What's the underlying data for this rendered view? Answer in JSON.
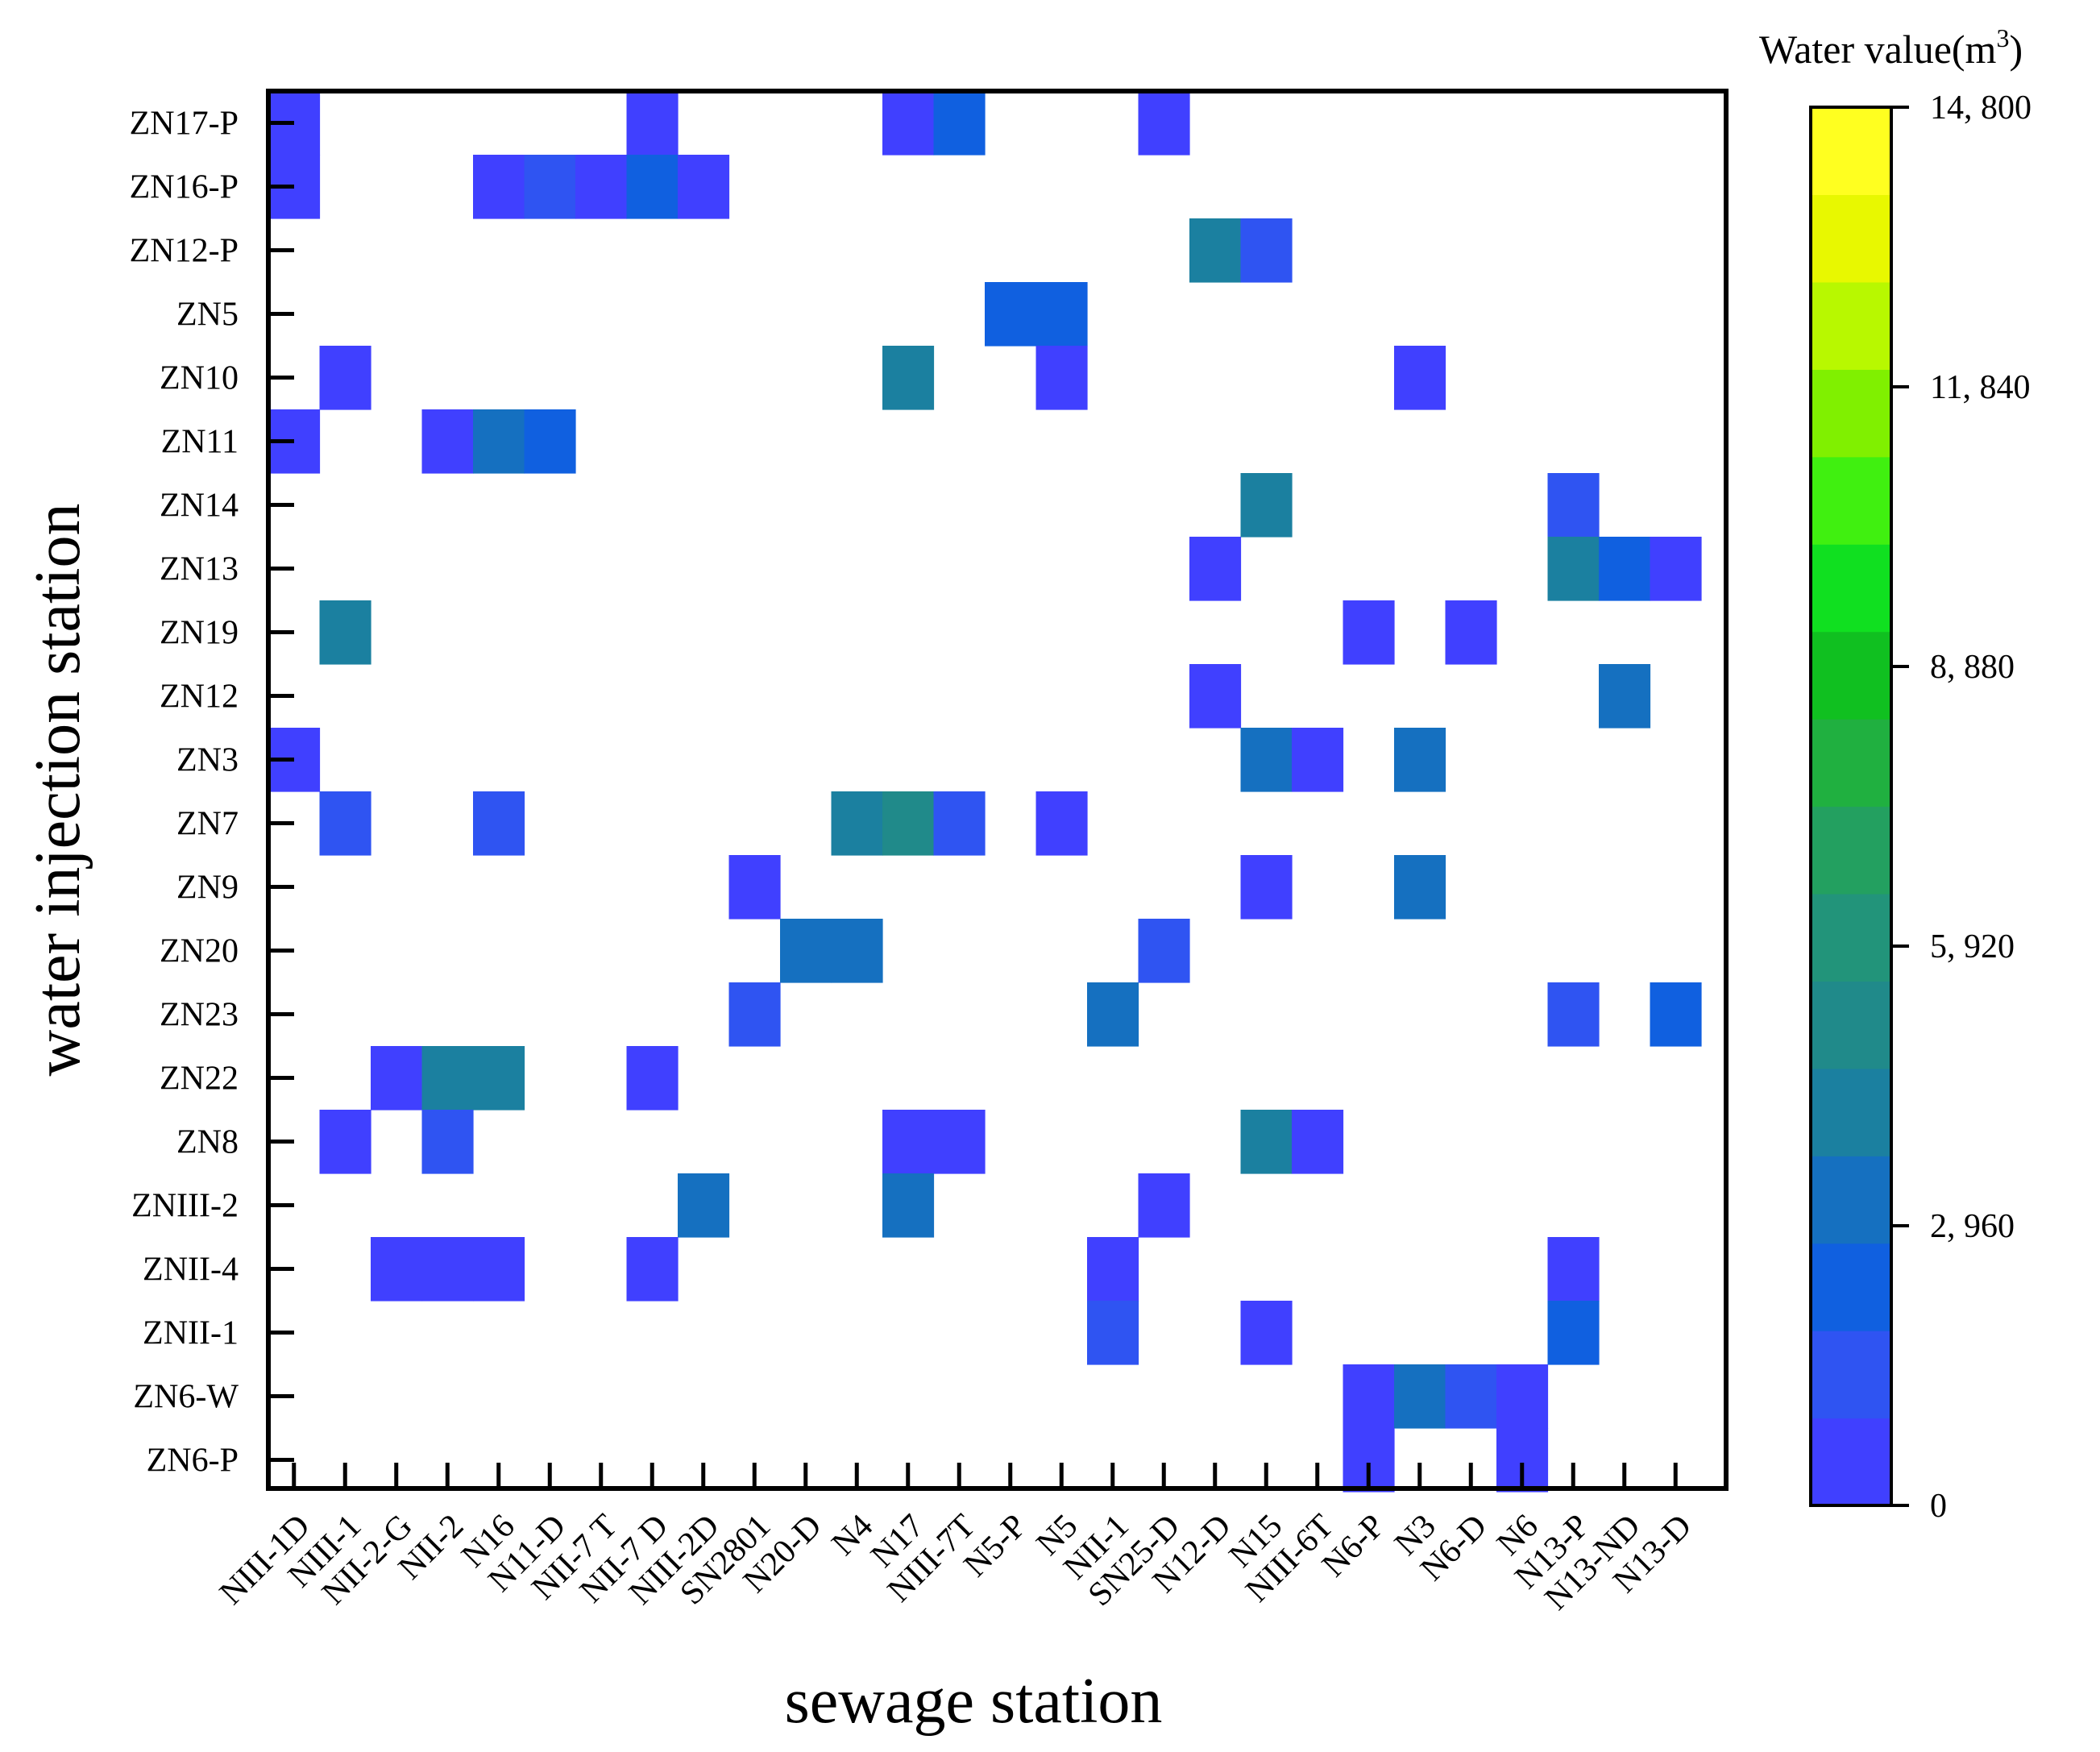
{
  "chart_data": {
    "type": "heatmap",
    "title": "",
    "xlabel": "sewage station",
    "ylabel": "water injection station",
    "x_categories": [
      "NIII-1D",
      "NIII-1",
      "NII-2-G",
      "NII-2",
      "N16",
      "N11-D",
      "NII-7 T",
      "NII-7 D",
      "NIII-2D",
      "SN2801",
      "N20-D",
      "N4",
      "N17",
      "NIII-7T",
      "N5-P",
      "N5",
      "NII-1",
      "SN25-D",
      "N12-D",
      "N15",
      "NIII-6T",
      "N6-P",
      "N3",
      "N6-D",
      "N6",
      "N13-P",
      "N13-ND",
      "N13-D"
    ],
    "y_categories": [
      "ZN17-P",
      "ZN16-P",
      "ZN12-P",
      "ZN5",
      "ZN10",
      "ZN11",
      "ZN14",
      "ZN13",
      "ZN19",
      "ZN12",
      "ZN3",
      "ZN7",
      "ZN9",
      "ZN20",
      "ZN23",
      "ZN22",
      "ZN8",
      "ZNIII-2",
      "ZNII-4",
      "ZNII-1",
      "ZN6-W",
      "ZN6-P"
    ],
    "colorbar": {
      "title": "Water value(m",
      "title_sup": "3",
      "title_end": ")",
      "min": 0,
      "max": 14800,
      "tick_values": [
        0,
        2960,
        5920,
        8880,
        11840,
        14800
      ],
      "tick_labels": [
        "0",
        "2, 960",
        "5, 920",
        "8, 880",
        "11, 840",
        "14, 800"
      ],
      "colors": [
        "#4040ff",
        "#2f54f2",
        "#1060e0",
        "#1570c0",
        "#1b80a0",
        "#208a8a",
        "#22947a",
        "#23a060",
        "#20b040",
        "#10c020",
        "#10e020",
        "#40f010",
        "#80f000",
        "#b8f800",
        "#e8f800",
        "#ffff20"
      ]
    },
    "cells": [
      {
        "x": "NIII-1D",
        "y": "ZN17-P",
        "value": 300
      },
      {
        "x": "NII-7 D",
        "y": "ZN17-P",
        "value": 300
      },
      {
        "x": "N17",
        "y": "ZN17-P",
        "value": 300
      },
      {
        "x": "NIII-7T",
        "y": "ZN17-P",
        "value": 2300
      },
      {
        "x": "SN25-D",
        "y": "ZN17-P",
        "value": 300
      },
      {
        "x": "NIII-1D",
        "y": "ZN16-P",
        "value": 300
      },
      {
        "x": "N16",
        "y": "ZN16-P",
        "value": 300
      },
      {
        "x": "N11-D",
        "y": "ZN16-P",
        "value": 1600
      },
      {
        "x": "NII-7 T",
        "y": "ZN16-P",
        "value": 300
      },
      {
        "x": "NII-7 D",
        "y": "ZN16-P",
        "value": 2500
      },
      {
        "x": "NIII-2D",
        "y": "ZN16-P",
        "value": 900
      },
      {
        "x": "N12-D",
        "y": "ZN12-P",
        "value": 3800
      },
      {
        "x": "N15",
        "y": "ZN12-P",
        "value": 1700
      },
      {
        "x": "N5-P",
        "y": "ZN5",
        "value": 2100
      },
      {
        "x": "N5",
        "y": "ZN5",
        "value": 2100
      },
      {
        "x": "NIII-1",
        "y": "ZN10",
        "value": 300
      },
      {
        "x": "N17",
        "y": "ZN10",
        "value": 4400
      },
      {
        "x": "N5",
        "y": "ZN10",
        "value": 300
      },
      {
        "x": "N3",
        "y": "ZN10",
        "value": 300
      },
      {
        "x": "NIII-1D",
        "y": "ZN11",
        "value": 300
      },
      {
        "x": "NII-2",
        "y": "ZN11",
        "value": 300
      },
      {
        "x": "N16",
        "y": "ZN11",
        "value": 3500
      },
      {
        "x": "N11-D",
        "y": "ZN11",
        "value": 2100
      },
      {
        "x": "N15",
        "y": "ZN14",
        "value": 3800
      },
      {
        "x": "N13-P",
        "y": "ZN14",
        "value": 1500
      },
      {
        "x": "N12-D",
        "y": "ZN13",
        "value": 300
      },
      {
        "x": "N13-P",
        "y": "ZN13",
        "value": 4500
      },
      {
        "x": "N13-ND",
        "y": "ZN13",
        "value": 2100
      },
      {
        "x": "N13-D",
        "y": "ZN13",
        "value": 300
      },
      {
        "x": "NIII-1",
        "y": "ZN19",
        "value": 3800
      },
      {
        "x": "N6-P",
        "y": "ZN19",
        "value": 300
      },
      {
        "x": "N6-D",
        "y": "ZN19",
        "value": 300
      },
      {
        "x": "N12-D",
        "y": "ZN12",
        "value": 300
      },
      {
        "x": "N13-ND",
        "y": "ZN12",
        "value": 3000
      },
      {
        "x": "NIII-1D",
        "y": "ZN3",
        "value": 300
      },
      {
        "x": "N15",
        "y": "ZN3",
        "value": 3000
      },
      {
        "x": "NIII-6T",
        "y": "ZN3",
        "value": 300
      },
      {
        "x": "N3",
        "y": "ZN3",
        "value": 3200
      },
      {
        "x": "NIII-1",
        "y": "ZN7",
        "value": 1500
      },
      {
        "x": "N16",
        "y": "ZN7",
        "value": 1500
      },
      {
        "x": "N4",
        "y": "ZN7",
        "value": 4000
      },
      {
        "x": "N17",
        "y": "ZN7",
        "value": 5100
      },
      {
        "x": "NIII-7T",
        "y": "ZN7",
        "value": 1500
      },
      {
        "x": "N5",
        "y": "ZN7",
        "value": 300
      },
      {
        "x": "SN2801",
        "y": "ZN9",
        "value": 700
      },
      {
        "x": "N15",
        "y": "ZN9",
        "value": 300
      },
      {
        "x": "N3",
        "y": "ZN9",
        "value": 3200
      },
      {
        "x": "N20-D",
        "y": "ZN20",
        "value": 3100
      },
      {
        "x": "N4",
        "y": "ZN20",
        "value": 3100
      },
      {
        "x": "SN25-D",
        "y": "ZN20",
        "value": 1400
      },
      {
        "x": "SN2801",
        "y": "ZN23",
        "value": 1700
      },
      {
        "x": "NII-1",
        "y": "ZN23",
        "value": 3200
      },
      {
        "x": "N13-P",
        "y": "ZN23",
        "value": 1400
      },
      {
        "x": "N13-D",
        "y": "ZN23",
        "value": 2000
      },
      {
        "x": "NII-2-G",
        "y": "ZN22",
        "value": 300
      },
      {
        "x": "NII-2",
        "y": "ZN22",
        "value": 4600
      },
      {
        "x": "N16",
        "y": "ZN22",
        "value": 4000
      },
      {
        "x": "NII-7 D",
        "y": "ZN22",
        "value": 300
      },
      {
        "x": "NIII-1",
        "y": "ZN8",
        "value": 900
      },
      {
        "x": "NII-2",
        "y": "ZN8",
        "value": 1400
      },
      {
        "x": "N17",
        "y": "ZN8",
        "value": 300
      },
      {
        "x": "NIII-7T",
        "y": "ZN8",
        "value": 300
      },
      {
        "x": "N15",
        "y": "ZN8",
        "value": 4500
      },
      {
        "x": "NIII-6T",
        "y": "ZN8",
        "value": 300
      },
      {
        "x": "NIII-2D",
        "y": "ZNIII-2",
        "value": 3000
      },
      {
        "x": "N17",
        "y": "ZNIII-2",
        "value": 3000
      },
      {
        "x": "SN25-D",
        "y": "ZNIII-2",
        "value": 300
      },
      {
        "x": "NII-2-G",
        "y": "ZNII-4",
        "value": 300
      },
      {
        "x": "NII-2",
        "y": "ZNII-4",
        "value": 300
      },
      {
        "x": "N16",
        "y": "ZNII-4",
        "value": 300
      },
      {
        "x": "NII-7 D",
        "y": "ZNII-4",
        "value": 300
      },
      {
        "x": "NII-1",
        "y": "ZNII-4",
        "value": 300
      },
      {
        "x": "N13-P",
        "y": "ZNII-4",
        "value": 300
      },
      {
        "x": "NII-1",
        "y": "ZNII-1",
        "value": 1500
      },
      {
        "x": "N15",
        "y": "ZNII-1",
        "value": 900
      },
      {
        "x": "N13-P",
        "y": "ZNII-1",
        "value": 2700
      },
      {
        "x": "N6-P",
        "y": "ZN6-W",
        "value": 300
      },
      {
        "x": "N3",
        "y": "ZN6-W",
        "value": 3200
      },
      {
        "x": "N6-D",
        "y": "ZN6-W",
        "value": 1500
      },
      {
        "x": "N6",
        "y": "ZN6-W",
        "value": 300
      },
      {
        "x": "N6-P",
        "y": "ZN6-P",
        "value": 300
      },
      {
        "x": "N6",
        "y": "ZN6-P",
        "value": 300
      }
    ]
  }
}
